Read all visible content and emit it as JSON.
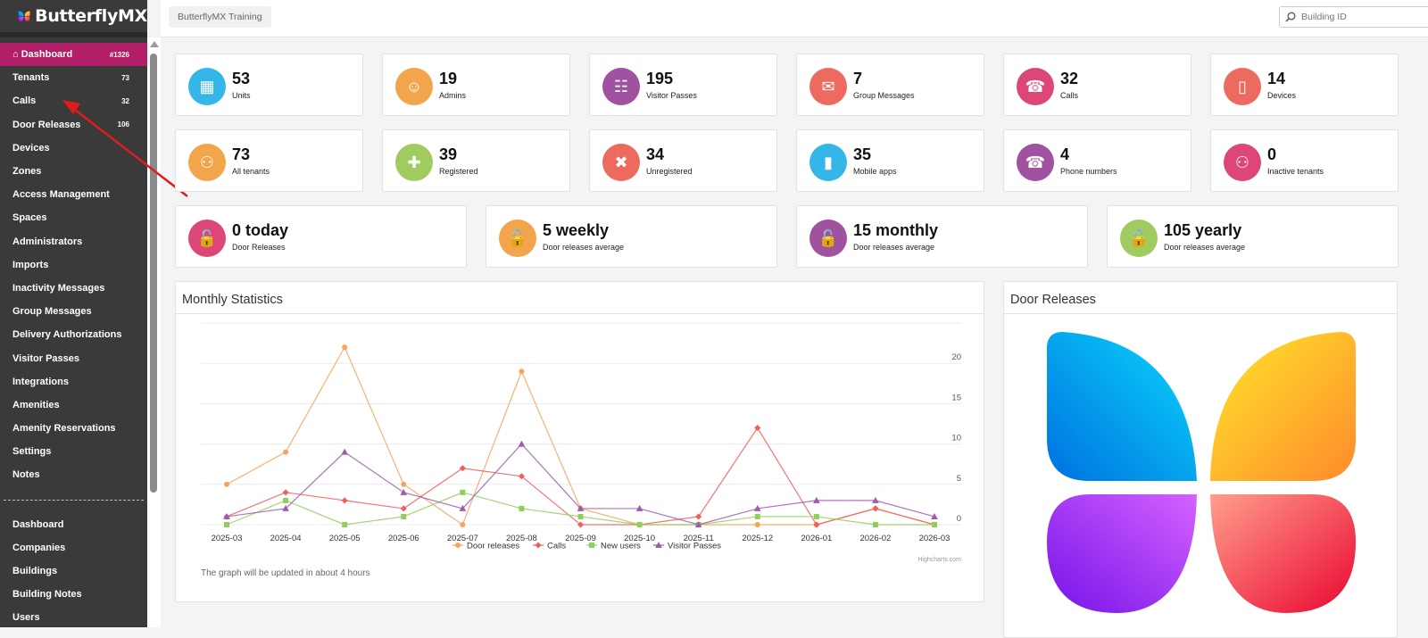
{
  "app": {
    "brand": "ButterflyMX"
  },
  "sidebar": {
    "items": [
      {
        "label": "Dashboard",
        "count": "#1326",
        "active": true,
        "icon": "home-icon"
      },
      {
        "label": "Tenants",
        "count": "73"
      },
      {
        "label": "Calls",
        "count": "32"
      },
      {
        "label": "Door Releases",
        "count": "106"
      },
      {
        "label": "Devices",
        "count": ""
      },
      {
        "label": "Zones",
        "count": ""
      },
      {
        "label": "Access Management",
        "count": ""
      },
      {
        "label": "Spaces",
        "count": ""
      },
      {
        "label": "Administrators",
        "count": ""
      },
      {
        "label": "Imports",
        "count": ""
      },
      {
        "label": "Inactivity Messages",
        "count": ""
      },
      {
        "label": "Group Messages",
        "count": ""
      },
      {
        "label": "Delivery Authorizations",
        "count": ""
      },
      {
        "label": "Visitor Passes",
        "count": ""
      },
      {
        "label": "Integrations",
        "count": ""
      },
      {
        "label": "Amenities",
        "count": ""
      },
      {
        "label": "Amenity Reservations",
        "count": ""
      },
      {
        "label": "Settings",
        "count": ""
      },
      {
        "label": "Notes",
        "count": ""
      }
    ],
    "admin_items": [
      {
        "label": "Dashboard"
      },
      {
        "label": "Companies"
      },
      {
        "label": "Buildings"
      },
      {
        "label": "Building Notes"
      },
      {
        "label": "Users"
      }
    ]
  },
  "topbar": {
    "building_name": "ButterflyMX Training",
    "search_placeholder": "Building ID"
  },
  "stats_row1": [
    {
      "value": "53",
      "label": "Units",
      "color": "#35b6e8",
      "icon": "building-icon"
    },
    {
      "value": "19",
      "label": "Admins",
      "color": "#f2a54a",
      "icon": "spy-admin-icon"
    },
    {
      "value": "195",
      "label": "Visitor Passes",
      "color": "#a0519f",
      "icon": "qr-code-icon"
    },
    {
      "value": "7",
      "label": "Group Messages",
      "color": "#ec6a5e",
      "icon": "envelope-icon"
    },
    {
      "value": "32",
      "label": "Calls",
      "color": "#dd4777",
      "icon": "phone-icon"
    },
    {
      "value": "14",
      "label": "Devices",
      "color": "#ec6a5e",
      "icon": "tablet-icon"
    }
  ],
  "stats_row2": [
    {
      "value": "73",
      "label": "All tenants",
      "color": "#f2a54a",
      "icon": "users-icon"
    },
    {
      "value": "39",
      "label": "Registered",
      "color": "#9fcb61",
      "icon": "user-plus-icon"
    },
    {
      "value": "34",
      "label": "Unregistered",
      "color": "#ec6a5e",
      "icon": "user-times-icon"
    },
    {
      "value": "35",
      "label": "Mobile apps",
      "color": "#35b6e8",
      "icon": "mobile-icon"
    },
    {
      "value": "4",
      "label": "Phone numbers",
      "color": "#a0519f",
      "icon": "phone-icon"
    },
    {
      "value": "0",
      "label": "Inactive tenants",
      "color": "#dd4777",
      "icon": "users-icon"
    }
  ],
  "door_releases": [
    {
      "value": "0 today",
      "label": "Door Releases",
      "color": "#dd4777",
      "icon": "unlock-icon"
    },
    {
      "value": "5 weekly",
      "label": "Door releases average",
      "color": "#f2a54a",
      "icon": "unlock-icon"
    },
    {
      "value": "15 monthly",
      "label": "Door releases average",
      "color": "#a0519f",
      "icon": "unlock-icon"
    },
    {
      "value": "105 yearly",
      "label": "Door releases average",
      "color": "#9fcb61",
      "icon": "unlock-icon"
    }
  ],
  "monthly_panel": {
    "title": "Monthly Statistics",
    "note": "The graph will be updated in about 4 hours",
    "credit": "Highcharts.com"
  },
  "door_panel": {
    "title": "Door Releases"
  },
  "chart_data": {
    "type": "line",
    "title": "Monthly Statistics",
    "xlabel": "",
    "ylabel": "",
    "categories": [
      "2025-03",
      "2025-04",
      "2025-05",
      "2025-06",
      "2025-07",
      "2025-08",
      "2025-09",
      "2025-10",
      "2025-11",
      "2025-12",
      "2026-01",
      "2026-02",
      "2026-03"
    ],
    "ylim": [
      0,
      25
    ],
    "yticks": [
      0,
      5,
      10,
      15,
      20
    ],
    "grid": true,
    "legend_position": "bottom-center",
    "series": [
      {
        "name": "Door releases",
        "color": "#f7a35c",
        "marker": "circle",
        "values": [
          5,
          9,
          22,
          5,
          0,
          19,
          2,
          0,
          0,
          0,
          0,
          2,
          0
        ]
      },
      {
        "name": "Calls",
        "color": "#f45b5b",
        "marker": "diamond",
        "values": [
          1,
          4,
          3,
          2,
          7,
          6,
          0,
          0,
          1,
          12,
          0,
          2,
          0
        ]
      },
      {
        "name": "New users",
        "color": "#90ce5c",
        "marker": "square",
        "values": [
          0,
          3,
          0,
          1,
          4,
          2,
          1,
          0,
          0,
          1,
          1,
          0,
          0
        ]
      },
      {
        "name": "Visitor Passes",
        "color": "#a05bb0",
        "marker": "triangle",
        "values": [
          1,
          2,
          9,
          4,
          2,
          10,
          2,
          2,
          0,
          2,
          3,
          3,
          1
        ]
      }
    ]
  }
}
